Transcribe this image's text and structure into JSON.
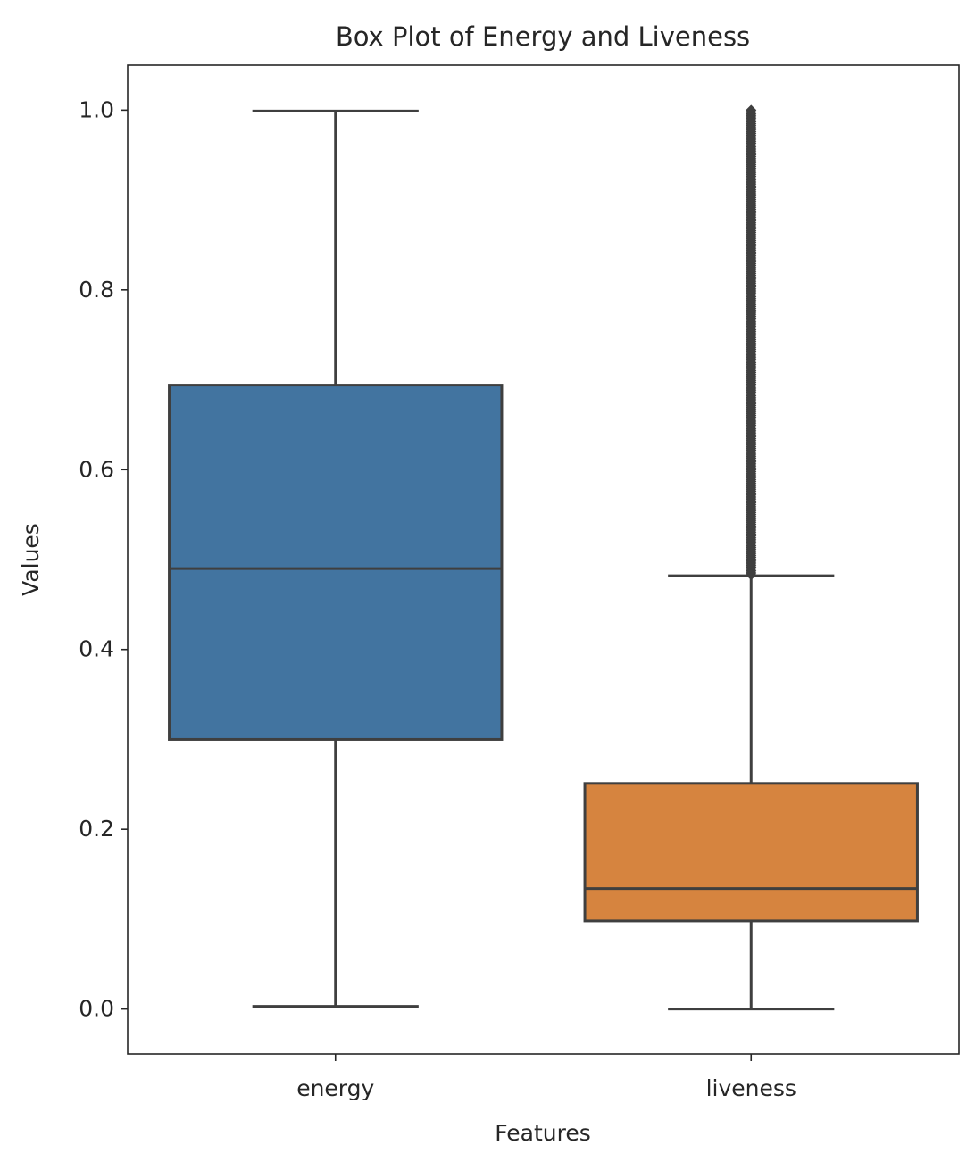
{
  "chart_data": {
    "type": "box",
    "title": "Box Plot of Energy and Liveness",
    "xlabel": "Features",
    "ylabel": "Values",
    "ylim": [
      -0.05,
      1.05
    ],
    "yticks": [
      {
        "value": 0.0,
        "label": "0.0"
      },
      {
        "value": 0.2,
        "label": "0.2"
      },
      {
        "value": 0.4,
        "label": "0.4"
      },
      {
        "value": 0.6,
        "label": "0.6"
      },
      {
        "value": 0.8,
        "label": "0.8"
      },
      {
        "value": 1.0,
        "label": "1.0"
      }
    ],
    "grid": false,
    "categories": [
      "energy",
      "liveness"
    ],
    "boxes": [
      {
        "category": "energy",
        "whisker_low": 0.003,
        "q1": 0.3,
        "median": 0.49,
        "q3": 0.694,
        "whisker_high": 0.999,
        "outliers_range": null,
        "color": "#4274a0"
      },
      {
        "category": "liveness",
        "whisker_low": 0.0,
        "q1": 0.098,
        "median": 0.134,
        "q3": 0.251,
        "whisker_high": 0.482,
        "outliers_range": [
          0.483,
          1.0
        ],
        "color": "#d6843f"
      }
    ],
    "line_color": "#3f3f3f"
  }
}
